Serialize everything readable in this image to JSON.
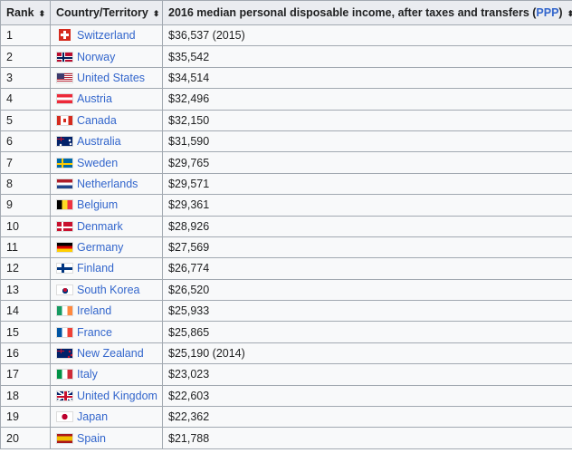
{
  "header": {
    "rank": "Rank",
    "country": "Country/Territory",
    "income_prefix": "2016 median personal disposable income, after taxes and transfers (",
    "income_link": "PPP",
    "income_suffix": ")",
    "sort_glyph": "⬍"
  },
  "rows": [
    {
      "rank": "1",
      "country": "Switzerland",
      "income": "$36,537 (2015)",
      "flag": "swiss-flag-icon"
    },
    {
      "rank": "2",
      "country": "Norway",
      "income": "$35,542",
      "flag": "norway-flag-icon"
    },
    {
      "rank": "3",
      "country": "United States",
      "income": "$34,514",
      "flag": "us-flag-icon"
    },
    {
      "rank": "4",
      "country": "Austria",
      "income": "$32,496",
      "flag": "austria-flag-icon"
    },
    {
      "rank": "5",
      "country": "Canada",
      "income": "$32,150",
      "flag": "canada-flag-icon"
    },
    {
      "rank": "6",
      "country": "Australia",
      "income": "$31,590",
      "flag": "australia-flag-icon"
    },
    {
      "rank": "7",
      "country": "Sweden",
      "income": "$29,765",
      "flag": "sweden-flag-icon"
    },
    {
      "rank": "8",
      "country": "Netherlands",
      "income": "$29,571",
      "flag": "netherlands-flag-icon"
    },
    {
      "rank": "9",
      "country": "Belgium",
      "income": "$29,361",
      "flag": "belgium-flag-icon"
    },
    {
      "rank": "10",
      "country": "Denmark",
      "income": "$28,926",
      "flag": "denmark-flag-icon"
    },
    {
      "rank": "11",
      "country": "Germany",
      "income": "$27,569",
      "flag": "germany-flag-icon"
    },
    {
      "rank": "12",
      "country": "Finland",
      "income": "$26,774",
      "flag": "finland-flag-icon"
    },
    {
      "rank": "13",
      "country": "South Korea",
      "income": "$26,520",
      "flag": "south-korea-flag-icon"
    },
    {
      "rank": "14",
      "country": "Ireland",
      "income": "$25,933",
      "flag": "ireland-flag-icon"
    },
    {
      "rank": "15",
      "country": "France",
      "income": "$25,865",
      "flag": "france-flag-icon"
    },
    {
      "rank": "16",
      "country": "New Zealand",
      "income": "$25,190 (2014)",
      "flag": "new-zealand-flag-icon"
    },
    {
      "rank": "17",
      "country": "Italy",
      "income": "$23,023",
      "flag": "italy-flag-icon"
    },
    {
      "rank": "18",
      "country": "United Kingdom",
      "income": "$22,603",
      "flag": "uk-flag-icon"
    },
    {
      "rank": "19",
      "country": "Japan",
      "income": "$22,362",
      "flag": "japan-flag-icon"
    },
    {
      "rank": "20",
      "country": "Spain",
      "income": "$21,788",
      "flag": "spain-flag-icon"
    }
  ]
}
